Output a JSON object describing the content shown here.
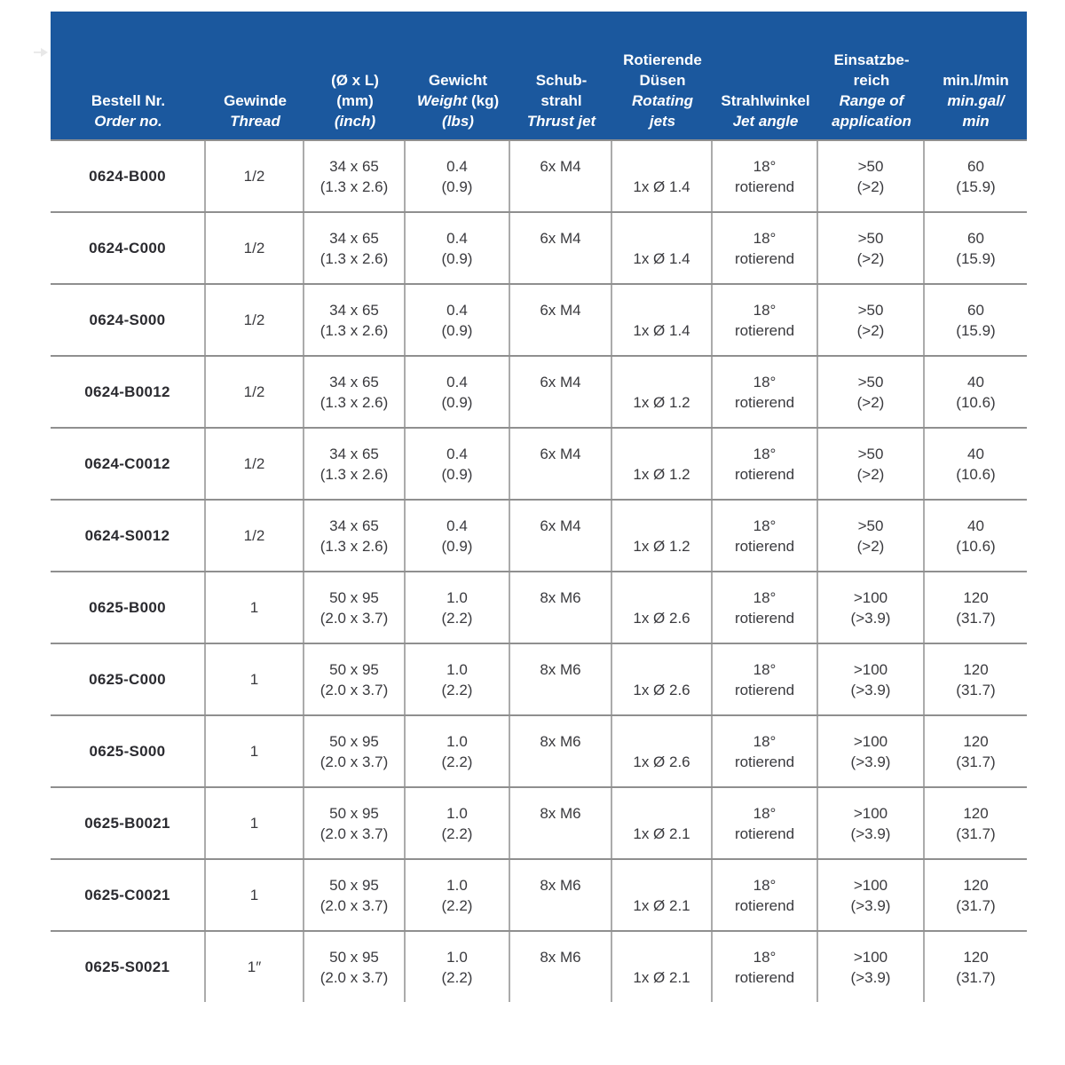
{
  "page": {
    "background": "#ffffff",
    "accent_color": "#1b589e"
  },
  "table": {
    "header": {
      "order": {
        "de1": "Bestell Nr.",
        "en1": "Order no."
      },
      "thread": {
        "de1": "Gewinde",
        "en1": "Thread"
      },
      "size": {
        "de1": "(Ø x L)",
        "de2": "(mm)",
        "en1": "(inch)"
      },
      "weight": {
        "de1": "Gewicht",
        "en1": "Weight",
        "de2": " (kg)",
        "en2": "(lbs)"
      },
      "thrust": {
        "de1": "Schub-",
        "de2": "strahl",
        "en1": "Thrust jet"
      },
      "jets": {
        "de1": "Rotierende",
        "de2": "Düsen",
        "en1": "Rotating",
        "en2": "jets"
      },
      "angle": {
        "de1": "Strahlwinkel",
        "en1": "Jet angle"
      },
      "range": {
        "de1": "Einsatzbe-",
        "de2": "reich",
        "en1": "Range of",
        "en2": "application"
      },
      "flow": {
        "de1": "min.l/min",
        "en1": "min.gal/",
        "en2": "min"
      }
    },
    "rows": [
      {
        "order_no": "0624-B000",
        "thread": "1/2",
        "size_mm": "34 x 65",
        "size_inch": "(1.3 x 2.6)",
        "weight_kg": "0.4",
        "weight_lbs": "(0.9)",
        "thrust_jet": "6x M4",
        "rotating_jets": "1x Ø 1.4",
        "jet_angle": "18°",
        "jet_angle_mode": "rotierend",
        "range_de": ">50",
        "range_en": "(>2)",
        "flow_l": "60",
        "flow_gal": "(15.9)"
      },
      {
        "order_no": "0624-C000",
        "thread": "1/2",
        "size_mm": "34 x 65",
        "size_inch": "(1.3 x 2.6)",
        "weight_kg": "0.4",
        "weight_lbs": "(0.9)",
        "thrust_jet": "6x M4",
        "rotating_jets": "1x Ø 1.4",
        "jet_angle": "18°",
        "jet_angle_mode": "rotierend",
        "range_de": ">50",
        "range_en": "(>2)",
        "flow_l": "60",
        "flow_gal": "(15.9)"
      },
      {
        "order_no": "0624-S000",
        "thread": "1/2",
        "size_mm": "34 x 65",
        "size_inch": "(1.3 x 2.6)",
        "weight_kg": "0.4",
        "weight_lbs": "(0.9)",
        "thrust_jet": "6x M4",
        "rotating_jets": "1x Ø 1.4",
        "jet_angle": "18°",
        "jet_angle_mode": "rotierend",
        "range_de": ">50",
        "range_en": "(>2)",
        "flow_l": "60",
        "flow_gal": "(15.9)"
      },
      {
        "order_no": "0624-B0012",
        "thread": "1/2",
        "size_mm": "34 x 65",
        "size_inch": "(1.3 x 2.6)",
        "weight_kg": "0.4",
        "weight_lbs": "(0.9)",
        "thrust_jet": "6x M4",
        "rotating_jets": "1x Ø 1.2",
        "jet_angle": "18°",
        "jet_angle_mode": "rotierend",
        "range_de": ">50",
        "range_en": "(>2)",
        "flow_l": "40",
        "flow_gal": "(10.6)"
      },
      {
        "order_no": "0624-C0012",
        "thread": "1/2",
        "size_mm": "34 x 65",
        "size_inch": "(1.3 x 2.6)",
        "weight_kg": "0.4",
        "weight_lbs": "(0.9)",
        "thrust_jet": "6x M4",
        "rotating_jets": "1x Ø 1.2",
        "jet_angle": "18°",
        "jet_angle_mode": "rotierend",
        "range_de": ">50",
        "range_en": "(>2)",
        "flow_l": "40",
        "flow_gal": "(10.6)"
      },
      {
        "order_no": "0624-S0012",
        "thread": "1/2",
        "size_mm": "34 x 65",
        "size_inch": "(1.3 x 2.6)",
        "weight_kg": "0.4",
        "weight_lbs": "(0.9)",
        "thrust_jet": "6x M4",
        "rotating_jets": "1x Ø 1.2",
        "jet_angle": "18°",
        "jet_angle_mode": "rotierend",
        "range_de": ">50",
        "range_en": "(>2)",
        "flow_l": "40",
        "flow_gal": "(10.6)"
      },
      {
        "order_no": "0625-B000",
        "thread": "1",
        "size_mm": "50 x 95",
        "size_inch": "(2.0 x 3.7)",
        "weight_kg": "1.0",
        "weight_lbs": "(2.2)",
        "thrust_jet": "8x M6",
        "rotating_jets": "1x Ø 2.6",
        "jet_angle": "18°",
        "jet_angle_mode": "rotierend",
        "range_de": ">100",
        "range_en": "(>3.9)",
        "flow_l": "120",
        "flow_gal": "(31.7)"
      },
      {
        "order_no": "0625-C000",
        "thread": "1",
        "size_mm": "50 x 95",
        "size_inch": "(2.0 x 3.7)",
        "weight_kg": "1.0",
        "weight_lbs": "(2.2)",
        "thrust_jet": "8x M6",
        "rotating_jets": "1x Ø 2.6",
        "jet_angle": "18°",
        "jet_angle_mode": "rotierend",
        "range_de": ">100",
        "range_en": "(>3.9)",
        "flow_l": "120",
        "flow_gal": "(31.7)"
      },
      {
        "order_no": "0625-S000",
        "thread": "1",
        "size_mm": "50 x 95",
        "size_inch": "(2.0 x 3.7)",
        "weight_kg": "1.0",
        "weight_lbs": "(2.2)",
        "thrust_jet": "8x M6",
        "rotating_jets": "1x Ø 2.6",
        "jet_angle": "18°",
        "jet_angle_mode": "rotierend",
        "range_de": ">100",
        "range_en": "(>3.9)",
        "flow_l": "120",
        "flow_gal": "(31.7)"
      },
      {
        "order_no": "0625-B0021",
        "thread": "1",
        "size_mm": "50 x 95",
        "size_inch": "(2.0 x 3.7)",
        "weight_kg": "1.0",
        "weight_lbs": "(2.2)",
        "thrust_jet": "8x M6",
        "rotating_jets": "1x Ø 2.1",
        "jet_angle": "18°",
        "jet_angle_mode": "rotierend",
        "range_de": ">100",
        "range_en": "(>3.9)",
        "flow_l": "120",
        "flow_gal": "(31.7)"
      },
      {
        "order_no": "0625-C0021",
        "thread": "1",
        "size_mm": "50 x 95",
        "size_inch": "(2.0 x 3.7)",
        "weight_kg": "1.0",
        "weight_lbs": "(2.2)",
        "thrust_jet": "8x M6",
        "rotating_jets": "1x Ø 2.1",
        "jet_angle": "18°",
        "jet_angle_mode": "rotierend",
        "range_de": ">100",
        "range_en": "(>3.9)",
        "flow_l": "120",
        "flow_gal": "(31.7)"
      },
      {
        "order_no": "0625-S0021",
        "thread": "1″",
        "size_mm": "50 x 95",
        "size_inch": "(2.0 x 3.7)",
        "weight_kg": "1.0",
        "weight_lbs": "(2.2)",
        "thrust_jet": "8x M6",
        "rotating_jets": "1x Ø 2.1",
        "jet_angle": "18°",
        "jet_angle_mode": "rotierend",
        "range_de": ">100",
        "range_en": "(>3.9)",
        "flow_l": "120",
        "flow_gal": "(31.7)"
      }
    ]
  }
}
